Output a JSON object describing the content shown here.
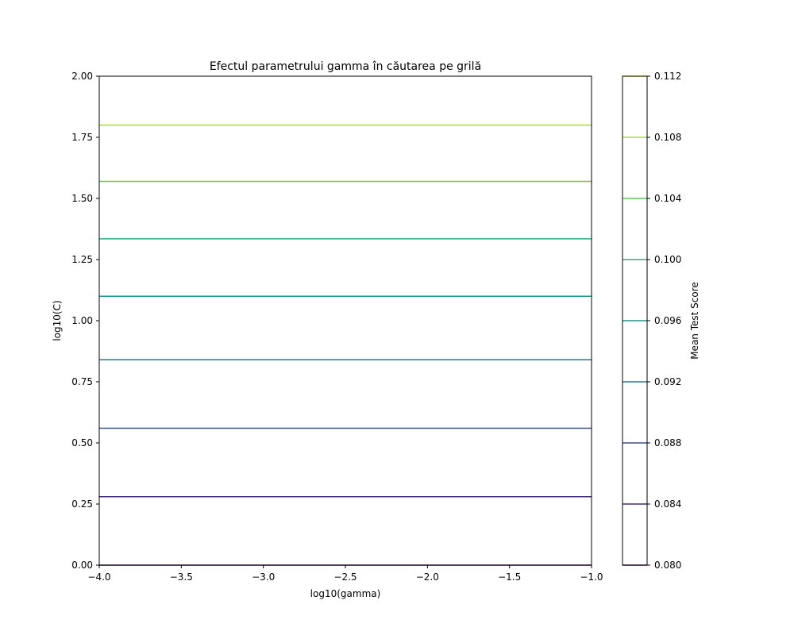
{
  "chart_data": {
    "type": "contour",
    "title": "Efectul parametrului gamma în căutarea pe grilă",
    "xlabel": "log10(gamma)",
    "ylabel": "log10(C)",
    "xlim": [
      -4.0,
      -1.0
    ],
    "ylim": [
      0.0,
      2.0
    ],
    "xticks": [
      -4.0,
      -3.5,
      -3.0,
      -2.5,
      -2.0,
      -1.5,
      -1.0
    ],
    "xtick_labels": [
      "−4.0",
      "−3.5",
      "−3.0",
      "−2.5",
      "−2.0",
      "−1.5",
      "−1.0"
    ],
    "yticks": [
      0.0,
      0.25,
      0.5,
      0.75,
      1.0,
      1.25,
      1.5,
      1.75,
      2.0
    ],
    "ytick_labels": [
      "0.00",
      "0.25",
      "0.50",
      "0.75",
      "1.00",
      "1.25",
      "1.50",
      "1.75",
      "2.00"
    ],
    "contours": [
      {
        "level": 0.08,
        "y": 0.0,
        "color": "#440154"
      },
      {
        "level": 0.084,
        "y": 0.28,
        "color": "#472d7b"
      },
      {
        "level": 0.088,
        "y": 0.56,
        "color": "#3b528b"
      },
      {
        "level": 0.092,
        "y": 0.84,
        "color": "#2c728e"
      },
      {
        "level": 0.096,
        "y": 1.1,
        "color": "#21918c"
      },
      {
        "level": 0.1,
        "y": 1.335,
        "color": "#28ae80"
      },
      {
        "level": 0.104,
        "y": 1.57,
        "color": "#5ec962"
      },
      {
        "level": 0.108,
        "y": 1.8,
        "color": "#addc30"
      }
    ],
    "colorbar": {
      "label": "Mean Test Score",
      "min": 0.08,
      "max": 0.112,
      "ticks": [
        0.08,
        0.084,
        0.088,
        0.092,
        0.096,
        0.1,
        0.104,
        0.108,
        0.112
      ],
      "tick_labels": [
        "0.080",
        "0.084",
        "0.088",
        "0.092",
        "0.096",
        "0.100",
        "0.104",
        "0.108",
        "0.112"
      ],
      "colors": [
        "#440154",
        "#472d7b",
        "#3b528b",
        "#2c728e",
        "#21918c",
        "#28ae80",
        "#5ec962",
        "#addc30",
        "#fde725"
      ]
    },
    "grid": false
  }
}
